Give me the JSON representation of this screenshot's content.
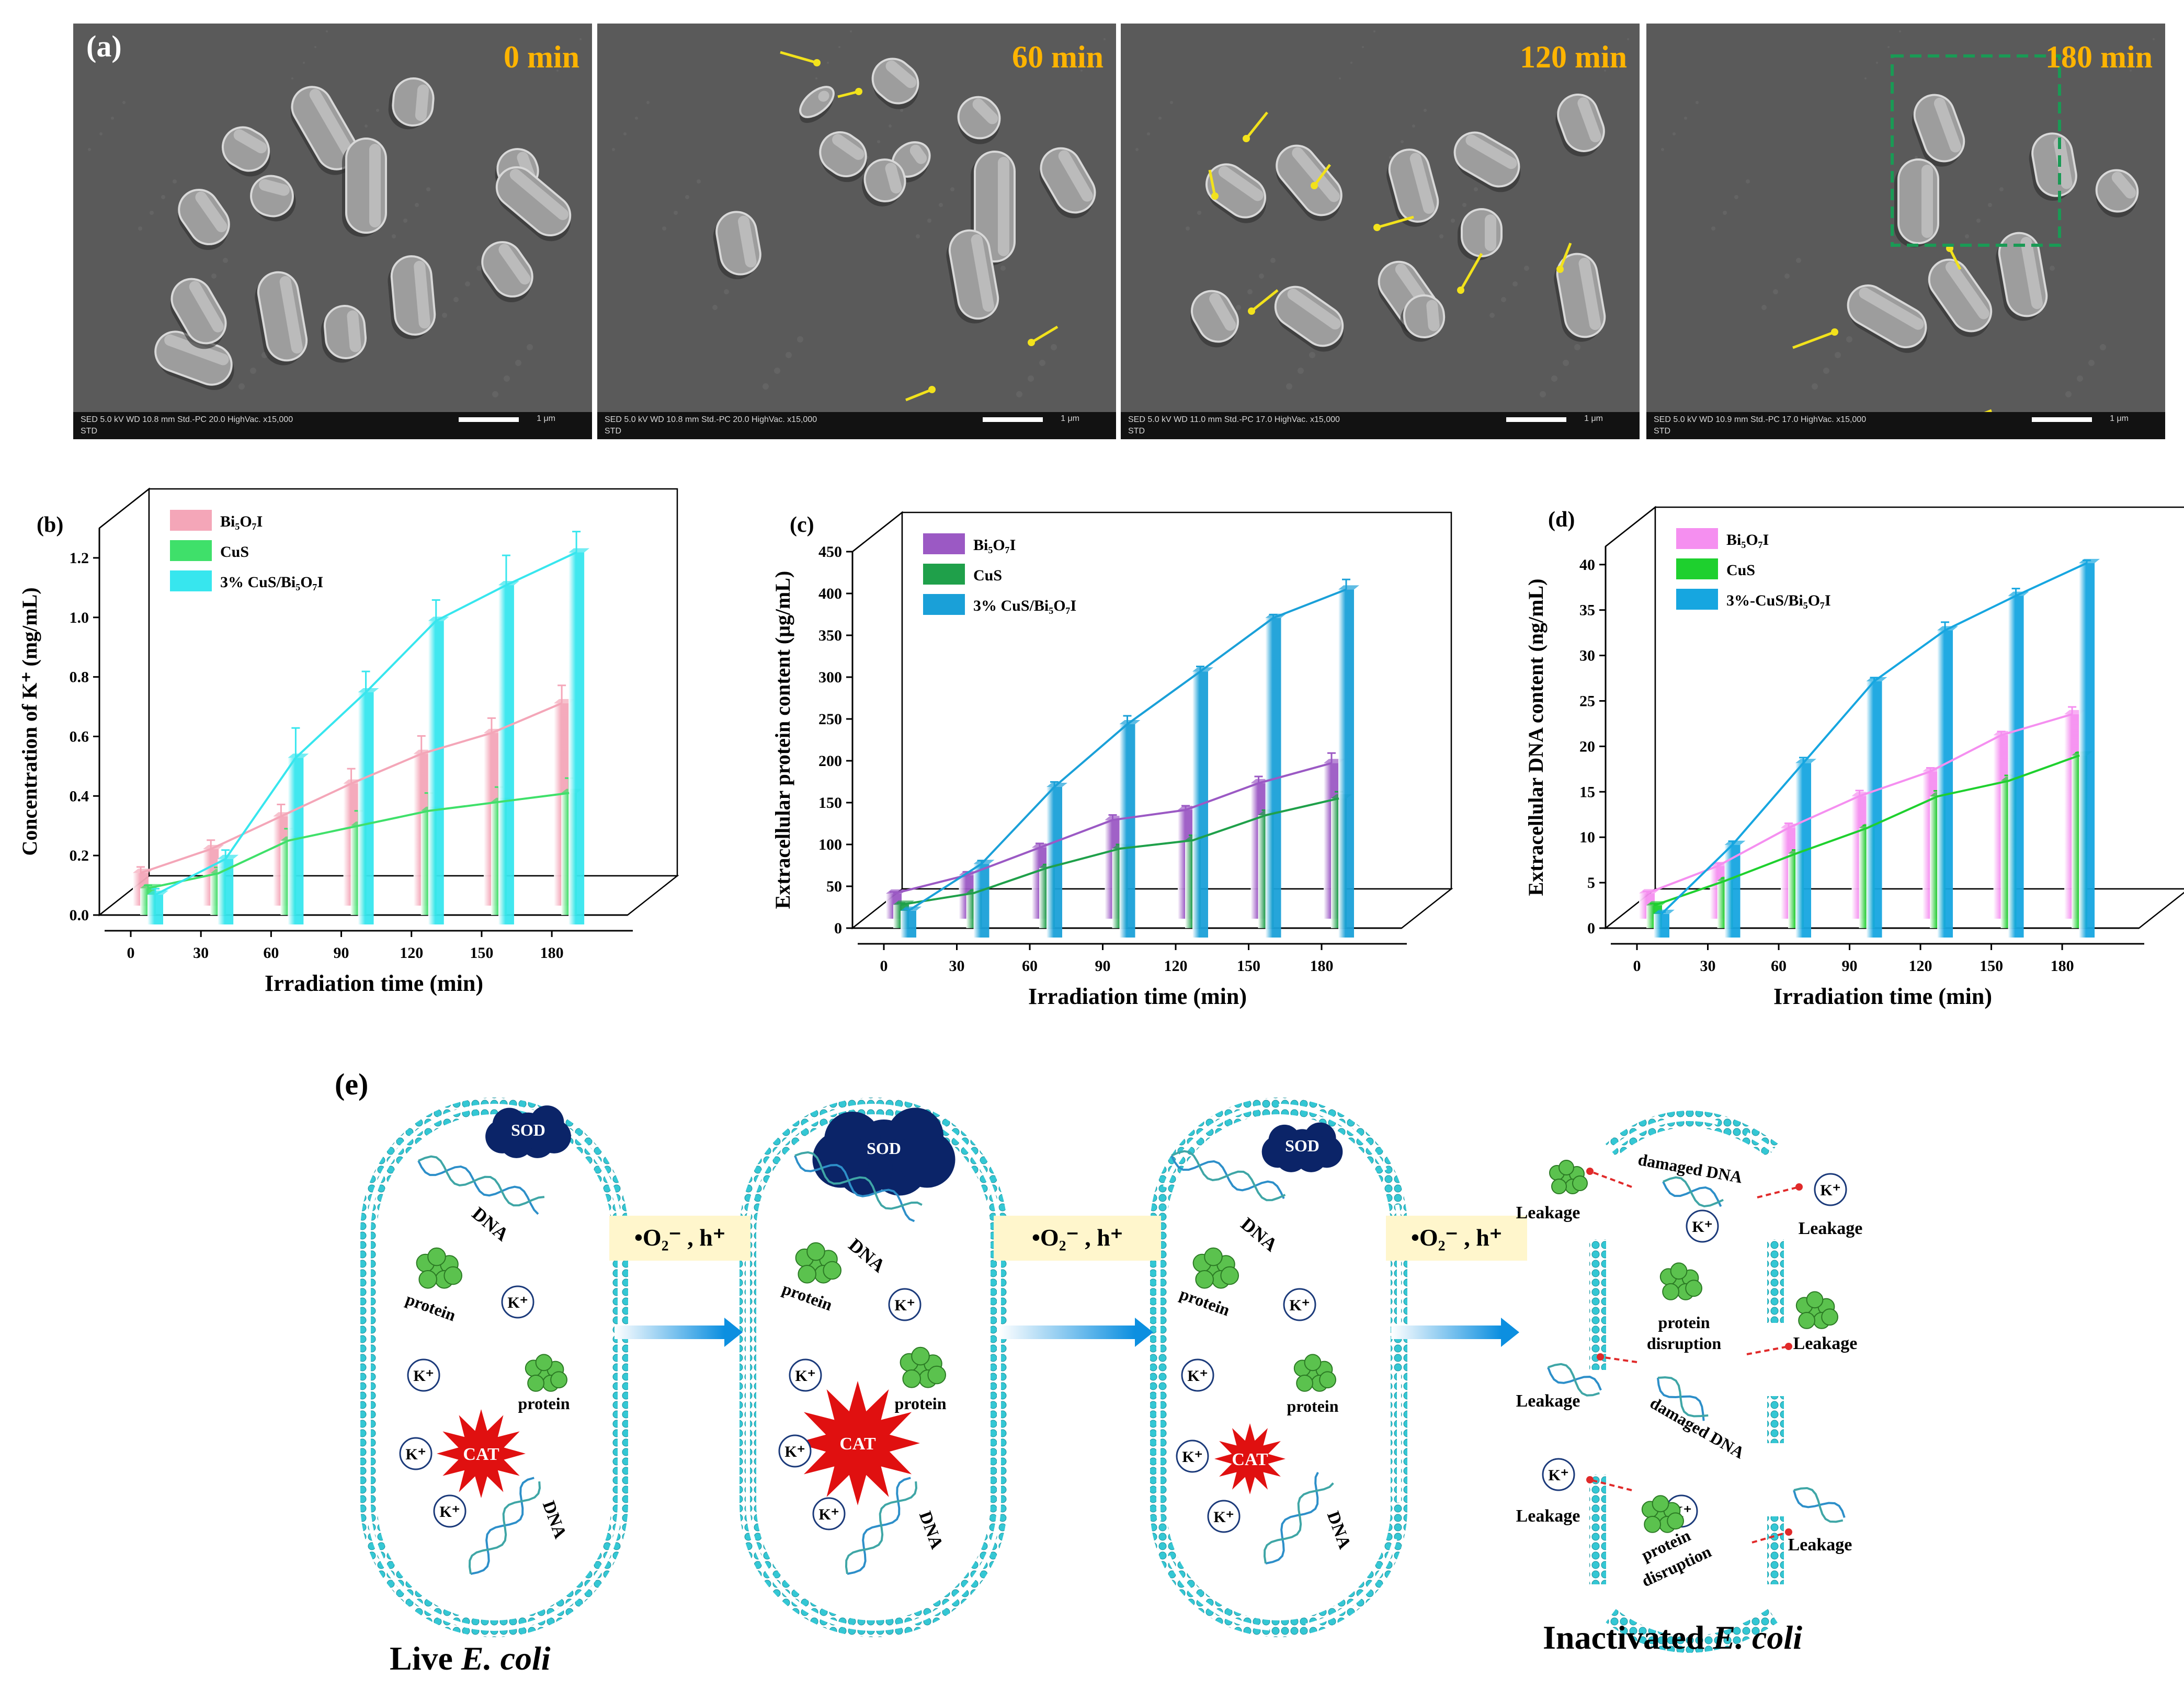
{
  "panel_a": {
    "label": "(a)",
    "images": [
      {
        "time": "0 min",
        "footer_line1": "SED   5.0 kV   WD 10.8 mm   Std.-PC 20.0   HighVac.   x15,000",
        "footer_line2": "STD",
        "scale": "1 μm"
      },
      {
        "time": "60 min",
        "footer_line1": "SED   5.0 kV   WD 10.8 mm   Std.-PC 20.0   HighVac.   x15,000",
        "footer_line2": "STD",
        "scale": "1 μm"
      },
      {
        "time": "120 min",
        "footer_line1": "SED   5.0 kV   WD 11.0 mm   Std.-PC 17.0   HighVac.   x15,000",
        "footer_line2": "STD",
        "scale": "1 μm"
      },
      {
        "time": "180 min",
        "footer_line1": "SED   5.0 kV   WD 10.9 mm   Std.-PC 17.0   HighVac.   x15,000",
        "footer_line2": "STD",
        "scale": "1 μm"
      }
    ]
  },
  "chart_data": [
    {
      "panel": "(b)",
      "type": "bar",
      "xlabel": "Irradiation time (min)",
      "ylabel": "Concentration of K⁺ (mg/mL)",
      "categories": [
        "0",
        "30",
        "60",
        "90",
        "120",
        "150",
        "180"
      ],
      "ylim": [
        0.0,
        1.3
      ],
      "yticks": [
        "0.0",
        "0.2",
        "0.4",
        "0.6",
        "0.8",
        "1.0",
        "1.2"
      ],
      "legend_position": "top-left",
      "series": [
        {
          "name": "Bi₅O₇I",
          "color": "#f4a6b8",
          "values": [
            0.11,
            0.19,
            0.3,
            0.41,
            0.51,
            0.58,
            0.68
          ],
          "errors": [
            0.02,
            0.03,
            0.04,
            0.05,
            0.06,
            0.05,
            0.06
          ]
        },
        {
          "name": "CuS",
          "color": "#3fe06a",
          "values": [
            0.09,
            0.14,
            0.25,
            0.3,
            0.35,
            0.38,
            0.41
          ],
          "errors": [
            0.01,
            0.02,
            0.04,
            0.05,
            0.06,
            0.05,
            0.05
          ]
        },
        {
          "name": "3% CuS/Bi₅O₇I",
          "color": "#37e6ee",
          "values": [
            0.1,
            0.22,
            0.56,
            0.78,
            1.02,
            1.14,
            1.25
          ],
          "errors": [
            0.02,
            0.03,
            0.1,
            0.07,
            0.07,
            0.1,
            0.07
          ]
        }
      ]
    },
    {
      "panel": "(c)",
      "type": "bar",
      "xlabel": "Irradiation time (min)",
      "ylabel": "Extracellular protein content (μg/mL)",
      "categories": [
        "0",
        "30",
        "60",
        "90",
        "120",
        "150",
        "180"
      ],
      "ylim": [
        0,
        450
      ],
      "yticks": [
        "0",
        "50",
        "100",
        "150",
        "200",
        "250",
        "300",
        "350",
        "400",
        "450"
      ],
      "legend_position": "top-left",
      "series": [
        {
          "name": "Bi₅O₇I",
          "color": "#9b59c4",
          "values": [
            30,
            52,
            85,
            118,
            130,
            162,
            186
          ],
          "errors": [
            2,
            4,
            5,
            6,
            5,
            8,
            12
          ]
        },
        {
          "name": "CuS",
          "color": "#1fa04a",
          "values": [
            28,
            42,
            72,
            95,
            105,
            135,
            155
          ],
          "errors": [
            2,
            3,
            4,
            5,
            6,
            6,
            8
          ]
        },
        {
          "name": "3% CuS/Bi₅O₇I",
          "color": "#1aa0d8",
          "values": [
            32,
            88,
            180,
            255,
            318,
            382,
            416
          ],
          "errors": [
            2,
            4,
            6,
            10,
            6,
            4,
            12
          ]
        }
      ]
    },
    {
      "panel": "(d)",
      "type": "bar",
      "xlabel": "Irradiation time (min)",
      "ylabel": "Extracellular DNA content (ng/mL)",
      "categories": [
        "0",
        "30",
        "60",
        "90",
        "120",
        "150",
        "180"
      ],
      "ylim": [
        0,
        42
      ],
      "yticks": [
        "0",
        "5",
        "10",
        "15",
        "20",
        "25",
        "30",
        "35",
        "40"
      ],
      "legend_position": "top-left",
      "series": [
        {
          "name": "Bi₅O₇I",
          "color": "#f58ff0",
          "values": [
            2.8,
            5.8,
            10.0,
            13.5,
            16.2,
            20.2,
            22.5
          ],
          "errors": [
            0.2,
            0.3,
            0.5,
            0.6,
            0.4,
            0.4,
            0.8
          ]
        },
        {
          "name": "CuS",
          "color": "#1ed02e",
          "values": [
            2.5,
            5.2,
            8.2,
            11.0,
            14.5,
            16.2,
            19.0
          ],
          "errors": [
            0.2,
            0.3,
            0.4,
            0.3,
            0.6,
            0.6,
            0.3
          ]
        },
        {
          "name": "3%-CuS/Bi₅O₇I",
          "color": "#16a6e0",
          "values": [
            2.6,
            10.2,
            19.2,
            28.2,
            33.8,
            37.6,
            41.2
          ],
          "errors": [
            0.2,
            0.4,
            0.6,
            0.4,
            0.9,
            0.8,
            0.3
          ]
        }
      ]
    }
  ],
  "panel_e": {
    "label": "(e)",
    "arrow_label": "•O₂⁻ ,  h⁺",
    "cell1": {
      "sod": "SOD",
      "cat": "CAT",
      "dna": "DNA",
      "protein": "protein",
      "k": "K⁺"
    },
    "cell4": {
      "damaged_dna": "damaged DNA",
      "protein_disruption": "protein disruption",
      "leakage": "Leakage",
      "k": "K⁺"
    },
    "caption_live_prefix": "Live ",
    "caption_live_italic": "E. coli",
    "caption_inact_prefix": "Inactivated ",
    "caption_inact_italic": "E. coli"
  }
}
